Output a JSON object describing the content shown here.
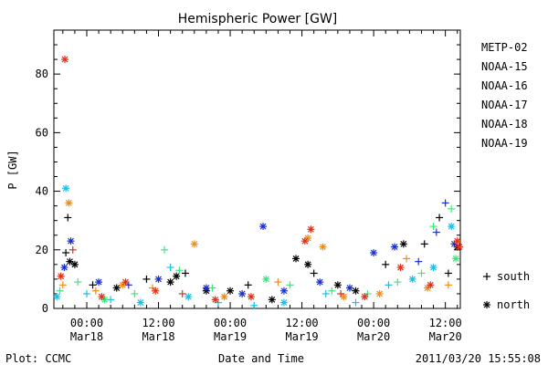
{
  "footer": {
    "plot_credit": "Plot: CCMC",
    "timestamp": "2011/03/20 15:55:08"
  },
  "chart_data": {
    "type": "scatter",
    "title": "Hemispheric Power [GW]",
    "xlabel": "Date and Time",
    "ylabel": "P [GW]",
    "ylim": [
      0,
      95
    ],
    "y_ticks": [
      "0",
      "20",
      "40",
      "60",
      "80"
    ],
    "xlim": [
      "2011-03-17T18:30",
      "2011-03-20T14:30"
    ],
    "x_ticks": [
      {
        "time": "00:00",
        "date": "Mar18",
        "x": "2011-03-18T00:00"
      },
      {
        "time": "12:00",
        "date": "Mar18",
        "x": "2011-03-18T12:00"
      },
      {
        "time": "00:00",
        "date": "Mar19",
        "x": "2011-03-19T00:00"
      },
      {
        "time": "12:00",
        "date": "Mar19",
        "x": "2011-03-19T12:00"
      },
      {
        "time": "00:00",
        "date": "Mar20",
        "x": "2011-03-20T00:00"
      },
      {
        "time": "12:00",
        "date": "Mar20",
        "x": "2011-03-20T12:00"
      }
    ],
    "hemisphere_legend": [
      {
        "marker": "+",
        "label": "south"
      },
      {
        "marker": "*",
        "label": "north"
      }
    ],
    "colors": {
      "METP-02": "#000000",
      "NOAA-15": "#1a2fd0",
      "NOAA-16": "#18c0e8",
      "NOAA-17": "#3ce87a",
      "NOAA-18": "#f08c18",
      "NOAA-19": "#e03018"
    },
    "series": [
      {
        "name": "METP-02",
        "color": "#000000",
        "points": [
          [
            "2011-03-17T20:30",
            19,
            "+"
          ],
          [
            "2011-03-17T20:50",
            31,
            "+"
          ],
          [
            "2011-03-17T21:10",
            16,
            "*"
          ],
          [
            "2011-03-17T22:00",
            15,
            "*"
          ],
          [
            "2011-03-18T01:00",
            8,
            "+"
          ],
          [
            "2011-03-18T05:00",
            7,
            "*"
          ],
          [
            "2011-03-18T10:00",
            10,
            "+"
          ],
          [
            "2011-03-18T14:00",
            9,
            "*"
          ],
          [
            "2011-03-18T15:00",
            11,
            "*"
          ],
          [
            "2011-03-18T16:30",
            12,
            "+"
          ],
          [
            "2011-03-18T20:00",
            6,
            "*"
          ],
          [
            "2011-03-19T00:00",
            6,
            "*"
          ],
          [
            "2011-03-19T03:00",
            8,
            "+"
          ],
          [
            "2011-03-19T07:00",
            3,
            "*"
          ],
          [
            "2011-03-19T11:00",
            17,
            "*"
          ],
          [
            "2011-03-19T13:00",
            15,
            "*"
          ],
          [
            "2011-03-19T14:00",
            12,
            "+"
          ],
          [
            "2011-03-19T18:00",
            8,
            "*"
          ],
          [
            "2011-03-19T21:00",
            6,
            "*"
          ],
          [
            "2011-03-20T02:00",
            15,
            "+"
          ],
          [
            "2011-03-20T05:00",
            22,
            "*"
          ],
          [
            "2011-03-20T08:30",
            22,
            "+"
          ],
          [
            "2011-03-20T11:00",
            31,
            "+"
          ],
          [
            "2011-03-20T12:30",
            12,
            "+"
          ],
          [
            "2011-03-20T14:00",
            21,
            "*"
          ]
        ]
      },
      {
        "name": "NOAA-15",
        "color": "#1a2fd0",
        "points": [
          [
            "2011-03-17T20:15",
            14,
            "*"
          ],
          [
            "2011-03-17T21:20",
            23,
            "*"
          ],
          [
            "2011-03-18T02:00",
            9,
            "*"
          ],
          [
            "2011-03-18T07:00",
            8,
            "+"
          ],
          [
            "2011-03-18T12:00",
            10,
            "*"
          ],
          [
            "2011-03-18T20:00",
            7,
            "*"
          ],
          [
            "2011-03-19T02:00",
            5,
            "*"
          ],
          [
            "2011-03-19T05:30",
            28,
            "*"
          ],
          [
            "2011-03-19T09:00",
            6,
            "*"
          ],
          [
            "2011-03-19T15:00",
            9,
            "*"
          ],
          [
            "2011-03-19T20:00",
            7,
            "*"
          ],
          [
            "2011-03-20T00:00",
            19,
            "*"
          ],
          [
            "2011-03-20T03:30",
            21,
            "*"
          ],
          [
            "2011-03-20T07:30",
            16,
            "+"
          ],
          [
            "2011-03-20T10:30",
            26,
            "+"
          ],
          [
            "2011-03-20T12:00",
            36,
            "+"
          ],
          [
            "2011-03-20T13:30",
            22,
            "*"
          ]
        ]
      },
      {
        "name": "NOAA-16",
        "color": "#18c0e8",
        "points": [
          [
            "2011-03-17T19:00",
            4,
            "*"
          ],
          [
            "2011-03-17T20:30",
            41,
            "*"
          ],
          [
            "2011-03-18T00:00",
            5,
            "+"
          ],
          [
            "2011-03-18T04:00",
            3,
            "+"
          ],
          [
            "2011-03-18T09:00",
            2,
            "*"
          ],
          [
            "2011-03-18T14:00",
            14,
            "+"
          ],
          [
            "2011-03-18T17:00",
            4,
            "*"
          ],
          [
            "2011-03-18T22:00",
            2,
            "+"
          ],
          [
            "2011-03-19T04:00",
            1,
            "+"
          ],
          [
            "2011-03-19T09:00",
            2,
            "*"
          ],
          [
            "2011-03-19T16:00",
            5,
            "+"
          ],
          [
            "2011-03-19T21:00",
            2,
            "+"
          ],
          [
            "2011-03-20T02:30",
            8,
            "+"
          ],
          [
            "2011-03-20T06:30",
            10,
            "*"
          ],
          [
            "2011-03-20T10:00",
            14,
            "*"
          ],
          [
            "2011-03-20T13:00",
            28,
            "*"
          ]
        ]
      },
      {
        "name": "NOAA-17",
        "color": "#3ce87a",
        "points": [
          [
            "2011-03-17T19:30",
            6,
            "+"
          ],
          [
            "2011-03-17T22:30",
            9,
            "+"
          ],
          [
            "2011-03-18T03:00",
            3,
            "*"
          ],
          [
            "2011-03-18T08:00",
            5,
            "+"
          ],
          [
            "2011-03-18T13:00",
            20,
            "+"
          ],
          [
            "2011-03-18T15:30",
            13,
            "+"
          ],
          [
            "2011-03-18T21:00",
            7,
            "+"
          ],
          [
            "2011-03-19T06:00",
            10,
            "*"
          ],
          [
            "2011-03-19T10:00",
            8,
            "+"
          ],
          [
            "2011-03-19T17:00",
            6,
            "+"
          ],
          [
            "2011-03-19T23:00",
            5,
            "+"
          ],
          [
            "2011-03-20T04:00",
            9,
            "+"
          ],
          [
            "2011-03-20T08:00",
            12,
            "+"
          ],
          [
            "2011-03-20T10:00",
            28,
            "+"
          ],
          [
            "2011-03-20T13:00",
            34,
            "+"
          ],
          [
            "2011-03-20T13:45",
            17,
            "*"
          ]
        ]
      },
      {
        "name": "NOAA-18",
        "color": "#f08c18",
        "points": [
          [
            "2011-03-17T20:00",
            8,
            "+"
          ],
          [
            "2011-03-17T21:00",
            36,
            "*"
          ],
          [
            "2011-03-18T01:30",
            6,
            "+"
          ],
          [
            "2011-03-18T06:00",
            8,
            "*"
          ],
          [
            "2011-03-18T11:00",
            7,
            "+"
          ],
          [
            "2011-03-18T18:00",
            22,
            "*"
          ],
          [
            "2011-03-18T23:00",
            4,
            "*"
          ],
          [
            "2011-03-19T08:00",
            9,
            "+"
          ],
          [
            "2011-03-19T13:00",
            24,
            "*"
          ],
          [
            "2011-03-19T15:30",
            21,
            "*"
          ],
          [
            "2011-03-19T19:00",
            4,
            "*"
          ],
          [
            "2011-03-20T01:00",
            5,
            "*"
          ],
          [
            "2011-03-20T05:30",
            17,
            "+"
          ],
          [
            "2011-03-20T09:00",
            7,
            "*"
          ],
          [
            "2011-03-20T12:30",
            8,
            "+"
          ]
        ]
      },
      {
        "name": "NOAA-19",
        "color": "#e03018",
        "points": [
          [
            "2011-03-17T19:40",
            11,
            "*"
          ],
          [
            "2011-03-17T20:20",
            85,
            "*"
          ],
          [
            "2011-03-17T21:40",
            20,
            "+"
          ],
          [
            "2011-03-18T02:30",
            4,
            "*"
          ],
          [
            "2011-03-18T06:30",
            9,
            "*"
          ],
          [
            "2011-03-18T11:30",
            6,
            "*"
          ],
          [
            "2011-03-18T16:00",
            5,
            "+"
          ],
          [
            "2011-03-18T21:30",
            3,
            "*"
          ],
          [
            "2011-03-19T03:30",
            4,
            "*"
          ],
          [
            "2011-03-19T12:30",
            23,
            "*"
          ],
          [
            "2011-03-19T13:30",
            27,
            "*"
          ],
          [
            "2011-03-19T18:30",
            5,
            "+"
          ],
          [
            "2011-03-19T22:30",
            4,
            "*"
          ],
          [
            "2011-03-20T04:30",
            14,
            "*"
          ],
          [
            "2011-03-20T09:30",
            8,
            "*"
          ],
          [
            "2011-03-20T14:00",
            23,
            "*"
          ],
          [
            "2011-03-20T14:20",
            21,
            "*"
          ]
        ]
      }
    ]
  }
}
